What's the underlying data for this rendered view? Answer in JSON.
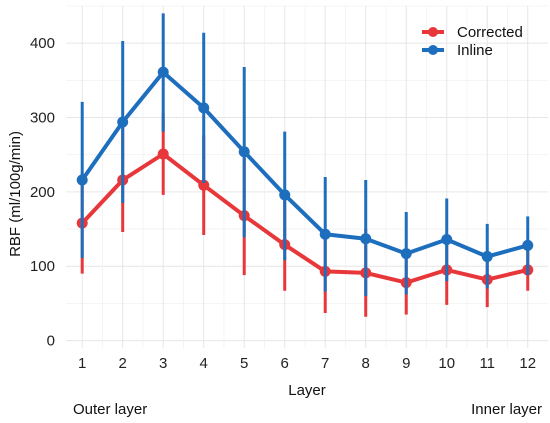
{
  "chart_data": {
    "type": "line",
    "title": "",
    "xlabel": "Layer",
    "ylabel": "RBF (ml/100g/min)",
    "x": [
      1,
      2,
      3,
      4,
      5,
      6,
      7,
      8,
      9,
      10,
      11,
      12
    ],
    "xticks": [
      "1",
      "2",
      "3",
      "4",
      "5",
      "6",
      "7",
      "8",
      "9",
      "10",
      "11",
      "12"
    ],
    "yticks": [
      "0",
      "100",
      "200",
      "300",
      "400"
    ],
    "ylim": [
      -10,
      450
    ],
    "xlim": [
      0.6,
      12.5
    ],
    "grid": true,
    "legend_position": "top-right",
    "error_bars": "vertical whiskers",
    "series": [
      {
        "name": "Corrected",
        "color": "#e8373a",
        "values": [
          158,
          216,
          251,
          209,
          168,
          129,
          93,
          91,
          78,
          95,
          82,
          95
        ],
        "lower": [
          90,
          146,
          196,
          142,
          88,
          67,
          37,
          32,
          35,
          48,
          45,
          67
        ],
        "upper": [
          225,
          287,
          306,
          276,
          246,
          189,
          150,
          150,
          120,
          142,
          120,
          124
        ]
      },
      {
        "name": "Inline",
        "color": "#1d6fbe",
        "values": [
          216,
          294,
          361,
          313,
          254,
          196,
          143,
          137,
          117,
          136,
          113,
          128
        ],
        "lower": [
          111,
          185,
          281,
          212,
          139,
          108,
          66,
          60,
          62,
          80,
          70,
          88
        ],
        "upper": [
          321,
          403,
          440,
          414,
          368,
          281,
          220,
          216,
          173,
          191,
          157,
          167
        ]
      }
    ]
  },
  "notes": {
    "left": "Outer layer",
    "right": "Inner layer"
  }
}
